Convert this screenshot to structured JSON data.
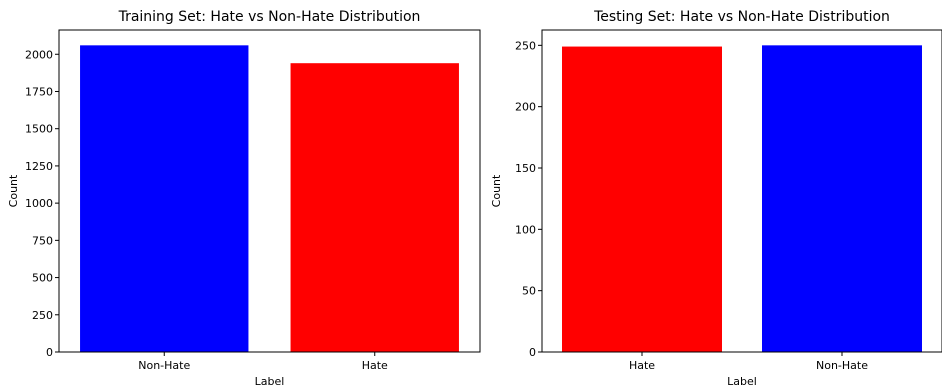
{
  "chart_data": [
    {
      "type": "bar",
      "title": "Training Set: Hate vs Non-Hate Distribution",
      "xlabel": "Label",
      "ylabel": "Count",
      "categories": [
        "Non-Hate",
        "Hate"
      ],
      "values": [
        2060,
        1940
      ],
      "colors": [
        "#0000ff",
        "#ff0000"
      ],
      "ylim": [
        0,
        2163
      ],
      "yticks": [
        0,
        250,
        500,
        750,
        1000,
        1250,
        1500,
        1750,
        2000
      ],
      "grid": false
    },
    {
      "type": "bar",
      "title": "Testing Set: Hate vs Non-Hate Distribution",
      "xlabel": "Label",
      "ylabel": "Count",
      "categories": [
        "Hate",
        "Non-Hate"
      ],
      "values": [
        249,
        250
      ],
      "colors": [
        "#ff0000",
        "#0000ff"
      ],
      "ylim": [
        0,
        262.5
      ],
      "yticks": [
        0,
        50,
        100,
        150,
        200,
        250
      ],
      "grid": false
    }
  ]
}
